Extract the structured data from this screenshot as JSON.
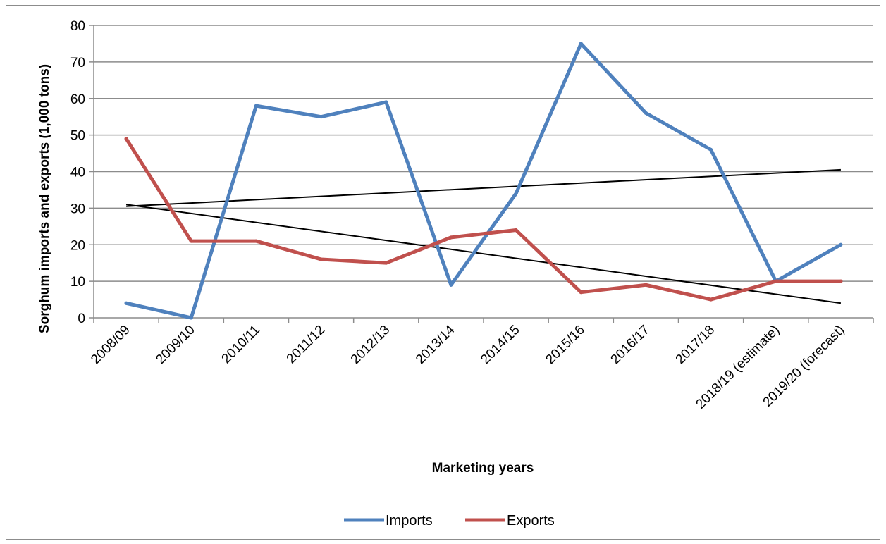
{
  "chart_data": {
    "type": "line",
    "title": "",
    "xlabel": "Marketing years",
    "ylabel": "Sorghum imports and exports (1,000 tons)",
    "ylim": [
      0,
      80
    ],
    "yticks": [
      "0",
      "10",
      "20",
      "30",
      "40",
      "50",
      "60",
      "70",
      "80"
    ],
    "categories": [
      "2008/09",
      "2009/10",
      "2010/11",
      "2011/12",
      "2012/13",
      "2013/14",
      "2014/15",
      "2015/16",
      "2016/17",
      "2017/18",
      "2018/19 (estimate)",
      "2019/20 (forecast)"
    ],
    "series": [
      {
        "name": "Imports",
        "color": "#4f81bd",
        "values": [
          4,
          0,
          58,
          55,
          59,
          9,
          34,
          75,
          56,
          46,
          10,
          20
        ]
      },
      {
        "name": "Exports",
        "color": "#c0504d",
        "values": [
          49,
          21,
          21,
          16,
          15,
          22,
          24,
          7,
          9,
          5,
          10,
          10
        ]
      }
    ],
    "trendlines": [
      {
        "color": "#000000",
        "from": 30.5,
        "to": 40.5
      },
      {
        "color": "#000000",
        "from": 31,
        "to": 4
      }
    ],
    "grid": true,
    "legend_position": "bottom"
  }
}
